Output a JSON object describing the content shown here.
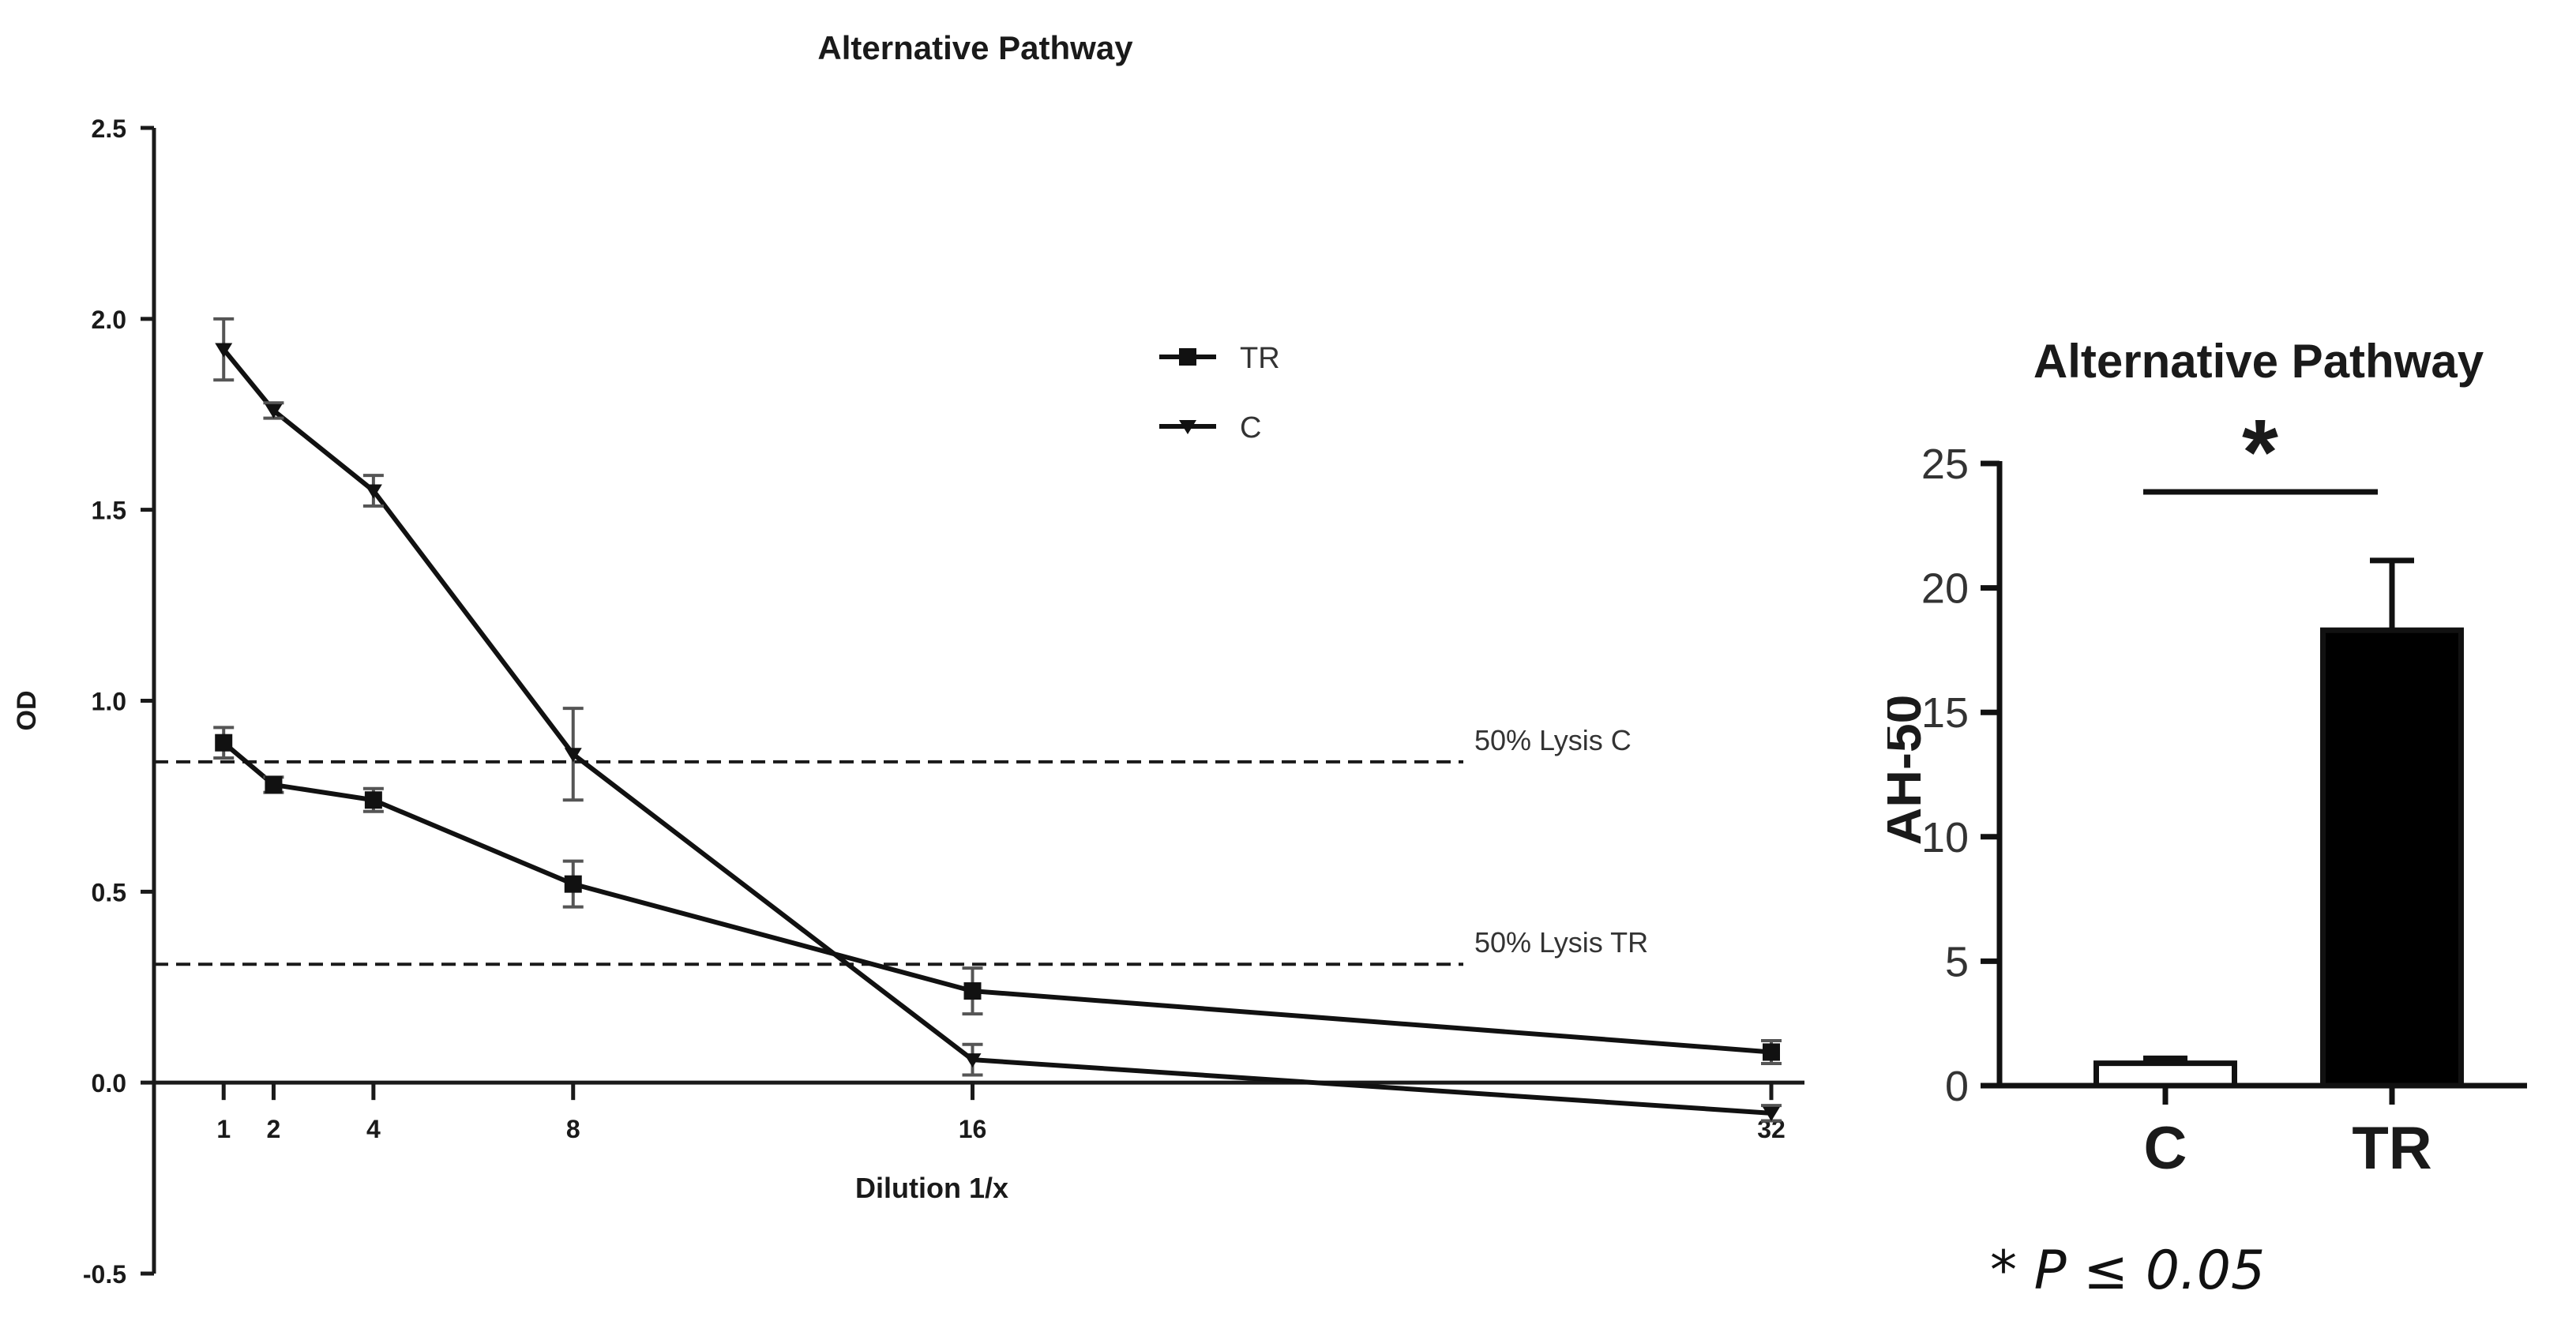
{
  "chart_data": [
    {
      "type": "line",
      "title": "Alternative Pathway",
      "xlabel": "Dilution 1/x",
      "ylabel": "OD",
      "xlim": [
        0,
        32
      ],
      "ylim": [
        -0.5,
        2.5
      ],
      "x_ticks": [
        1,
        2,
        4,
        8,
        16,
        32
      ],
      "y_ticks": [
        -0.5,
        0.0,
        0.5,
        1.0,
        1.5,
        2.0,
        2.5
      ],
      "y_tick_labels": [
        "-0.5",
        "0.0",
        "0.5",
        "1.0",
        "1.5",
        "2.0",
        "2.5"
      ],
      "series": [
        {
          "name": "TR",
          "marker": "square",
          "x": [
            1,
            2,
            4,
            8,
            16,
            32
          ],
          "y": [
            0.89,
            0.78,
            0.74,
            0.52,
            0.24,
            0.08
          ],
          "err": [
            0.04,
            0.02,
            0.03,
            0.06,
            0.06,
            0.03
          ]
        },
        {
          "name": "C",
          "marker": "triangle-down",
          "x": [
            1,
            2,
            4,
            8,
            16,
            32
          ],
          "y": [
            1.92,
            1.76,
            1.55,
            0.86,
            0.06,
            -0.08
          ],
          "err": [
            0.08,
            0.02,
            0.04,
            0.12,
            0.04,
            0.02
          ]
        }
      ],
      "reference_lines": [
        {
          "label": "50%  Lysis C",
          "y": 0.84
        },
        {
          "label": "50%  Lysis TR",
          "y": 0.31
        }
      ],
      "legend_position": "top-right"
    },
    {
      "type": "bar",
      "title": "Alternative Pathway",
      "xlabel": "",
      "ylabel": "AH-50",
      "categories": [
        "C",
        "TR"
      ],
      "values": [
        0.9,
        18.3
      ],
      "err": [
        0.2,
        2.8
      ],
      "fill": [
        "#ffffff",
        "#000000"
      ],
      "ylim": [
        0,
        25
      ],
      "y_ticks": [
        0,
        5,
        10,
        15,
        20,
        25
      ],
      "significance": {
        "label": "*",
        "between": [
          "C",
          "TR"
        ]
      },
      "footnote": "* P ≤ 0.05"
    }
  ]
}
